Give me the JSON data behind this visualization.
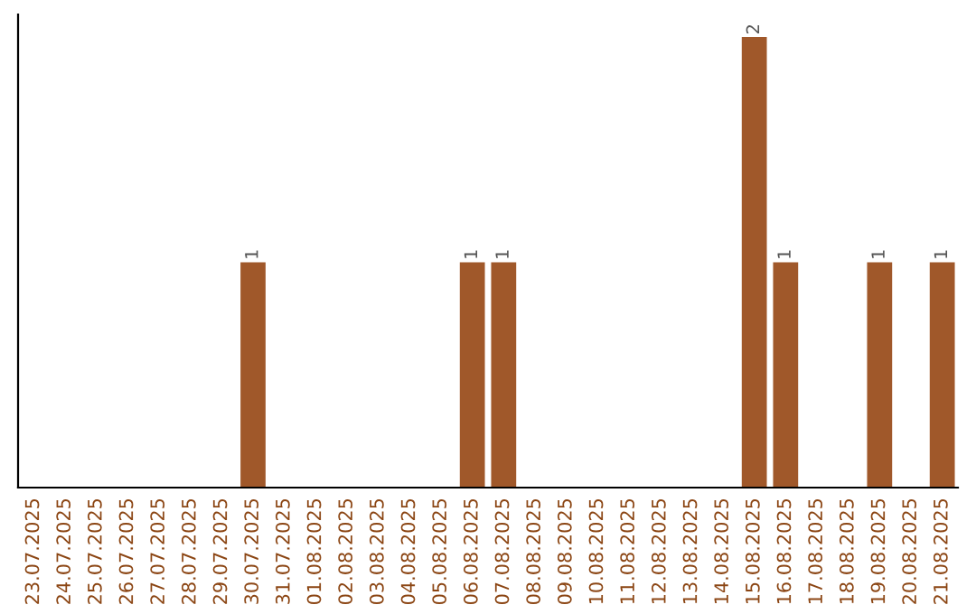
{
  "chart_data": {
    "type": "bar",
    "categories": [
      "23.07.2025",
      "24.07.2025",
      "25.07.2025",
      "26.07.2025",
      "27.07.2025",
      "28.07.2025",
      "29.07.2025",
      "30.07.2025",
      "31.07.2025",
      "01.08.2025",
      "02.08.2025",
      "03.08.2025",
      "04.08.2025",
      "05.08.2025",
      "06.08.2025",
      "07.08.2025",
      "08.08.2025",
      "09.08.2025",
      "10.08.2025",
      "11.08.2025",
      "12.08.2025",
      "13.08.2025",
      "14.08.2025",
      "15.08.2025",
      "16.08.2025",
      "17.08.2025",
      "18.08.2025",
      "19.08.2025",
      "20.08.2025",
      "21.08.2025"
    ],
    "values": [
      0,
      0,
      0,
      0,
      0,
      0,
      0,
      1,
      0,
      0,
      0,
      0,
      0,
      0,
      1,
      1,
      0,
      0,
      0,
      0,
      0,
      0,
      0,
      2,
      1,
      0,
      0,
      1,
      0,
      1
    ],
    "color": "#a0582a",
    "value_labels": [
      null,
      null,
      null,
      null,
      null,
      null,
      null,
      "1",
      null,
      null,
      null,
      null,
      null,
      null,
      "1",
      "1",
      null,
      null,
      null,
      null,
      null,
      null,
      null,
      "2",
      "1",
      null,
      null,
      "1",
      null,
      "1"
    ],
    "tick_labels": "x",
    "grid": false,
    "legend": false
  }
}
